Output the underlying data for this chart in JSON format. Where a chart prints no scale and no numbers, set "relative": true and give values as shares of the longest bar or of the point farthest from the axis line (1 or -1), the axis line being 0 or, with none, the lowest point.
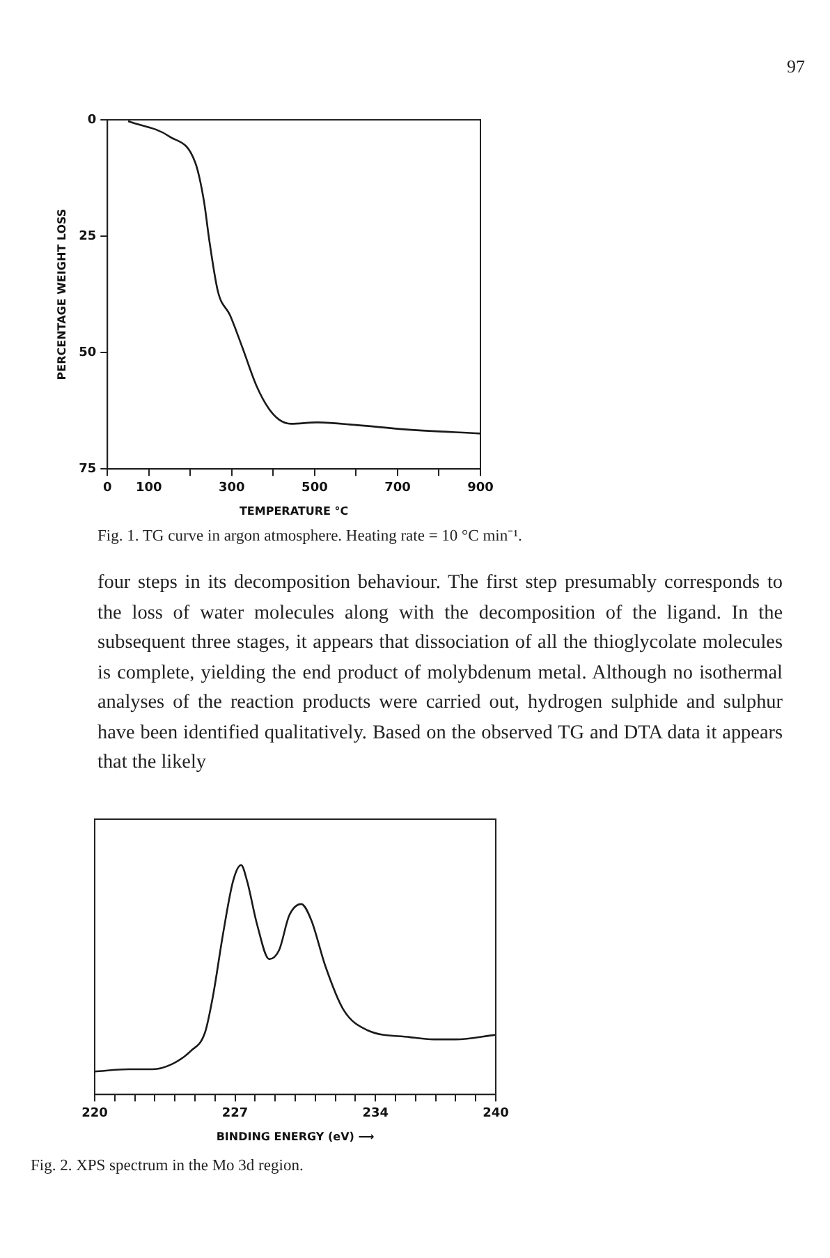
{
  "chart_data": [
    {
      "type": "line",
      "xlabel": "TEMPERATURE °C",
      "ylabel": "PERCENTAGE WEIGHT LOSS",
      "x": [
        50,
        150,
        212,
        233,
        246,
        267,
        296,
        326,
        359,
        389,
        414,
        443,
        507,
        604,
        717,
        900
      ],
      "series": [
        {
          "color": "#1a1a1a",
          "values": [
            0.3,
            3.6,
            9.2,
            17.5,
            26,
            37,
            42,
            49,
            57,
            62,
            64.4,
            65.3,
            65,
            65.6,
            66.5,
            67.4
          ]
        }
      ],
      "xlim": [
        0,
        900
      ],
      "xticks": [
        0,
        100,
        {
          "value": 200,
          "label": null
        },
        300,
        {
          "value": 400,
          "label": null
        },
        500,
        {
          "value": 600,
          "label": null
        },
        700,
        {
          "value": 800,
          "label": null
        },
        900
      ],
      "ylim": [
        75,
        0
      ],
      "yticks": [
        0,
        25,
        50,
        75
      ],
      "annotations": [
        "97",
        "Fig. 1. TG curve in argon atmosphere. Heating rate = 10 °C min⁻¹.",
        "four steps in its decomposition behaviour. The first step presumably corresponds to the loss of water molecules along with the decomposition of the ligand. In the subsequent three stages, it appears that dissociation of all the thioglycolate molecules is complete, yielding the end product of molybdenum metal. Although no isothermal analyses of the reaction products were carried out, hydrogen sulphide and sulphur have been identified qualitatively. Based on the observed TG and DTA data it appears that the likely"
      ]
    },
    {
      "type": "line",
      "xlabel": "BINDING ENERGY (eV) ⟶",
      "relative": true,
      "x": [
        220,
        221.7,
        222.9,
        223.8,
        224.8,
        225.5,
        225.9,
        226.4,
        226.9,
        227.3,
        227.6,
        228.1,
        228.7,
        229.2,
        229.7,
        230.3,
        230.8,
        231.5,
        232.4,
        233.6,
        235.7,
        236.9,
        238,
        240
      ],
      "series": [
        {
          "color": "#1a1a1a",
          "values": [
            0.1,
            0.11,
            0.11,
            0.13,
            0.19,
            0.27,
            0.43,
            0.7,
            0.93,
            1,
            0.93,
            0.74,
            0.59,
            0.63,
            0.78,
            0.83,
            0.76,
            0.56,
            0.37,
            0.28,
            0.25,
            0.24,
            0.24,
            0.26
          ]
        }
      ],
      "xlim": [
        220,
        240
      ],
      "xticks": [
        220,
        {
          "value": 221,
          "label": null
        },
        {
          "value": 222,
          "label": null
        },
        {
          "value": 223,
          "label": null
        },
        {
          "value": 224,
          "label": null
        },
        {
          "value": 225,
          "label": null
        },
        {
          "value": 226,
          "label": null
        },
        227,
        {
          "value": 228,
          "label": null
        },
        {
          "value": 229,
          "label": null
        },
        {
          "value": 230,
          "label": null
        },
        {
          "value": 231,
          "label": null
        },
        {
          "value": 232,
          "label": null
        },
        {
          "value": 233,
          "label": null
        },
        234,
        {
          "value": 235,
          "label": null
        },
        {
          "value": 236,
          "label": null
        },
        {
          "value": 237,
          "label": null
        },
        {
          "value": 238,
          "label": null
        },
        {
          "value": 239,
          "label": null
        },
        240
      ],
      "annotations": [
        "Fig. 2. XPS spectrum in the Mo 3d region."
      ]
    }
  ]
}
